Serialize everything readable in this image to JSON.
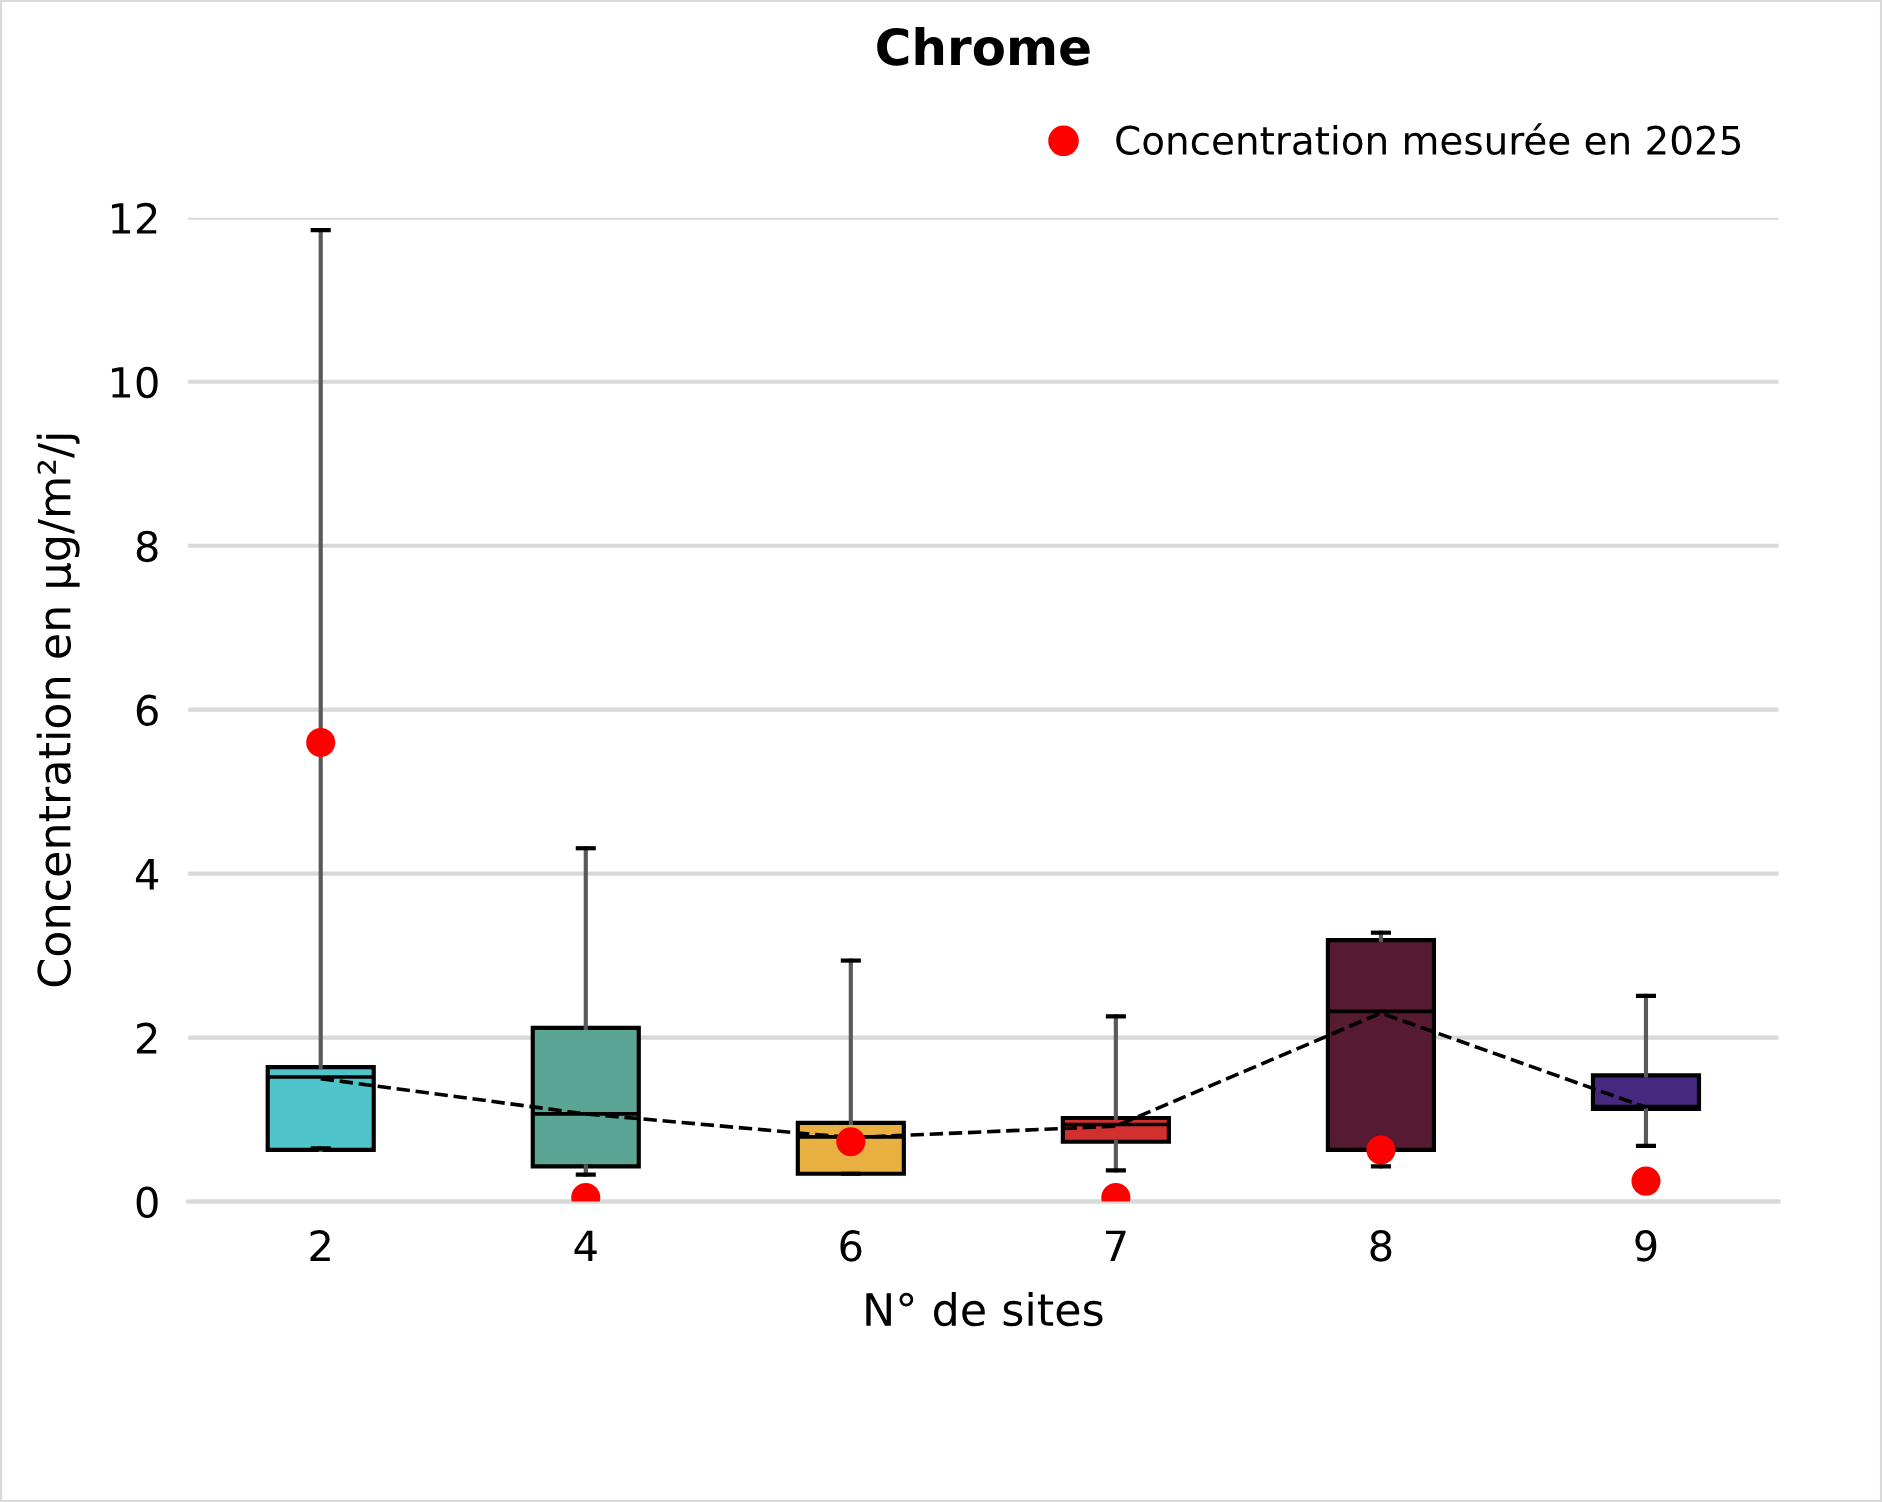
{
  "chart_data": {
    "type": "box",
    "title": "Chrome",
    "xlabel": "N° de sites",
    "ylabel": "Concentration en µg/m²/j",
    "categories": [
      "2",
      "4",
      "6",
      "7",
      "8",
      "9"
    ],
    "series": [
      {
        "colors": [
          "#4fc4ca",
          "#5ba594",
          "#e8b040",
          "#d2302e",
          "#561a33",
          "#46287e"
        ],
        "boxes": [
          {
            "low": 0.65,
            "q1": 0.63,
            "median": 1.52,
            "q3": 1.64,
            "high": 11.85
          },
          {
            "low": 0.33,
            "q1": 0.43,
            "median": 1.07,
            "q3": 2.12,
            "high": 4.31
          },
          {
            "low": 0.34,
            "q1": 0.34,
            "median": 0.79,
            "q3": 0.96,
            "high": 2.94
          },
          {
            "low": 0.38,
            "q1": 0.73,
            "median": 0.94,
            "q3": 1.02,
            "high": 2.26
          },
          {
            "low": 0.43,
            "q1": 0.63,
            "median": 2.32,
            "q3": 3.19,
            "high": 3.28
          },
          {
            "low": 0.68,
            "q1": 1.13,
            "median": 1.16,
            "q3": 1.54,
            "high": 2.51
          }
        ]
      },
      {
        "type": "line",
        "color": "#000000",
        "line_style": "dashed",
        "values": [
          1.5,
          1.07,
          0.78,
          0.92,
          2.3,
          1.15
        ]
      },
      {
        "type": "scatter",
        "name": "Concentration mesurée en 2025",
        "color": "#ff0000",
        "marker": "circle",
        "values": [
          5.6,
          0.05,
          0.73,
          0.05,
          0.63,
          0.25
        ]
      }
    ],
    "ylim": [
      0,
      12
    ],
    "yticks": [
      0,
      2,
      4,
      6,
      8,
      10,
      12
    ],
    "grid": "y",
    "legend": "top right"
  }
}
